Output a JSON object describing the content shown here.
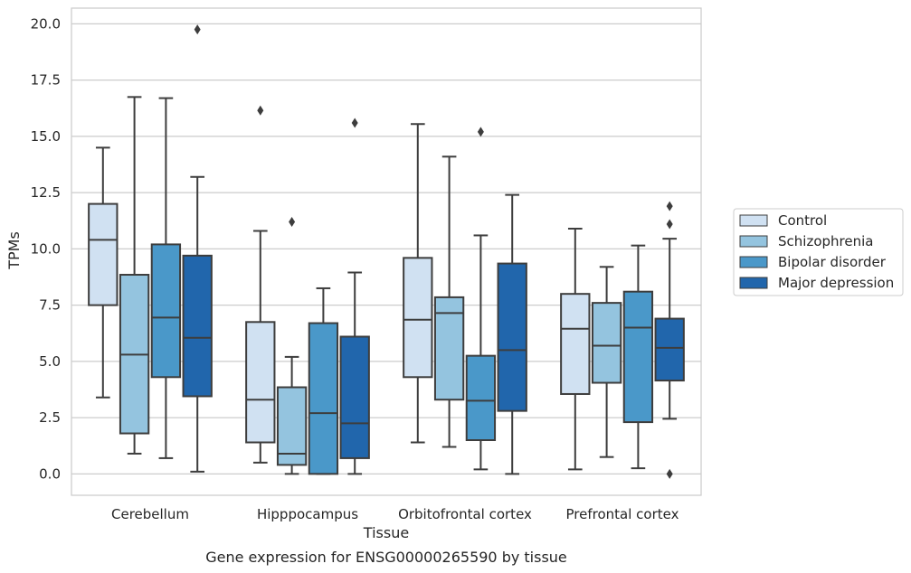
{
  "chart_data": {
    "type": "box",
    "title": "",
    "caption": "Gene expression for ENSG00000265590 by tissue",
    "xlabel": "Tissue",
    "ylabel": "TPMs",
    "ylim": [
      -0.95,
      20.7
    ],
    "yticks": [
      "0.0",
      "2.5",
      "5.0",
      "7.5",
      "10.0",
      "12.5",
      "15.0",
      "17.5",
      "20.0"
    ],
    "ytick_values": [
      0,
      2.5,
      5,
      7.5,
      10,
      12.5,
      15,
      17.5,
      20
    ],
    "grid": "horizontal",
    "legend_position": "right",
    "categories": [
      "Cerebellum",
      "Hipppocampus",
      "Orbitofrontal cortex",
      "Prefrontal cortex"
    ],
    "series": [
      {
        "name": "Control",
        "color": "#d0e1f2",
        "boxes": [
          {
            "whislo": 3.4,
            "q1": 7.5,
            "med": 10.4,
            "q3": 12.0,
            "whishi": 14.5,
            "fliers": []
          },
          {
            "whislo": 0.5,
            "q1": 1.4,
            "med": 3.3,
            "q3": 6.75,
            "whishi": 10.8,
            "fliers": [
              16.15
            ]
          },
          {
            "whislo": 1.4,
            "q1": 4.3,
            "med": 6.85,
            "q3": 9.6,
            "whishi": 15.55,
            "fliers": []
          },
          {
            "whislo": 0.2,
            "q1": 3.55,
            "med": 6.45,
            "q3": 8.0,
            "whishi": 10.9,
            "fliers": []
          }
        ]
      },
      {
        "name": "Schizophrenia",
        "color": "#94c4df",
        "boxes": [
          {
            "whislo": 0.9,
            "q1": 1.8,
            "med": 5.3,
            "q3": 8.85,
            "whishi": 16.75,
            "fliers": []
          },
          {
            "whislo": 0.0,
            "q1": 0.4,
            "med": 0.9,
            "q3": 3.85,
            "whishi": 5.2,
            "fliers": [
              11.2
            ]
          },
          {
            "whislo": 1.2,
            "q1": 3.3,
            "med": 7.15,
            "q3": 7.85,
            "whishi": 14.1,
            "fliers": []
          },
          {
            "whislo": 0.75,
            "q1": 4.05,
            "med": 5.7,
            "q3": 7.6,
            "whishi": 9.2,
            "fliers": []
          }
        ]
      },
      {
        "name": "Bipolar disorder",
        "color": "#4a98c9",
        "boxes": [
          {
            "whislo": 0.7,
            "q1": 4.3,
            "med": 6.95,
            "q3": 10.2,
            "whishi": 16.7,
            "fliers": []
          },
          {
            "whislo": 0.0,
            "q1": 0.0,
            "med": 2.7,
            "q3": 6.7,
            "whishi": 8.25,
            "fliers": []
          },
          {
            "whislo": 0.2,
            "q1": 1.5,
            "med": 3.25,
            "q3": 5.25,
            "whishi": 10.6,
            "fliers": [
              15.2
            ]
          },
          {
            "whislo": 0.25,
            "q1": 2.3,
            "med": 6.5,
            "q3": 8.1,
            "whishi": 10.15,
            "fliers": []
          }
        ]
      },
      {
        "name": "Major depression",
        "color": "#2166ac",
        "boxes": [
          {
            "whislo": 0.1,
            "q1": 3.45,
            "med": 6.05,
            "q3": 9.7,
            "whishi": 13.2,
            "fliers": [
              19.75
            ]
          },
          {
            "whislo": 0.0,
            "q1": 0.7,
            "med": 2.25,
            "q3": 6.1,
            "whishi": 8.95,
            "fliers": [
              15.6
            ]
          },
          {
            "whislo": 0.0,
            "q1": 2.8,
            "med": 5.5,
            "q3": 9.35,
            "whishi": 12.4,
            "fliers": []
          },
          {
            "whislo": 2.45,
            "q1": 4.15,
            "med": 5.6,
            "q3": 6.9,
            "whishi": 10.45,
            "fliers": [
              0.0,
              11.1,
              11.9
            ]
          }
        ]
      }
    ]
  }
}
